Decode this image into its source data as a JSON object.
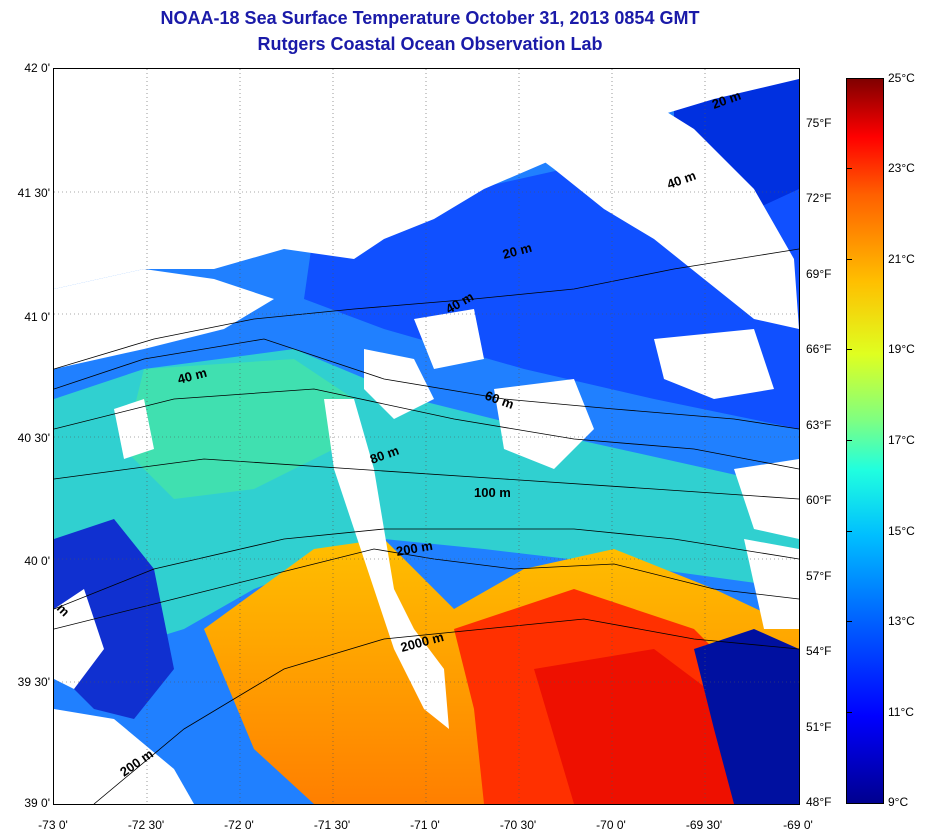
{
  "title": {
    "line1": "NOAA-18 Sea Surface Temperature October 31, 2013 0854 GMT",
    "line2": "Rutgers Coastal Ocean Observation Lab"
  },
  "axes": {
    "lat_labels": [
      "42 0'",
      "41 30'",
      "41 0'",
      "40 30'",
      "40 0'",
      "39 30'",
      "39 0'"
    ],
    "lon_labels": [
      "-73 0'",
      "-72 30'",
      "-72 0'",
      "-71 30'",
      "-71 0'",
      "-70 30'",
      "-70 0'",
      "-69 30'",
      "-69 0'"
    ]
  },
  "colorbar": {
    "celsius_labels": [
      "25°C",
      "23°C",
      "21°C",
      "19°C",
      "17°C",
      "15°C",
      "13°C",
      "11°C",
      "9°C"
    ],
    "fahrenheit_labels": [
      "75°F",
      "72°F",
      "69°F",
      "66°F",
      "63°F",
      "60°F",
      "57°F",
      "54°F",
      "51°F",
      "48°F"
    ],
    "colors": [
      "#00008f",
      "#0000ff",
      "#0060ff",
      "#00bfff",
      "#20ffdf",
      "#80ff80",
      "#dfff20",
      "#ffbf00",
      "#ff6000",
      "#ff0000",
      "#800000"
    ]
  },
  "contour_labels": [
    "20 m",
    "40 m",
    "20 m",
    "40 m",
    "40 m",
    "60 m",
    "80 m",
    "100 m",
    "200 m",
    "2000 m",
    "200 m",
    "m"
  ],
  "colors": {
    "title": "#1a1aa8",
    "land": "#ffffff",
    "cloud": "#ffffff"
  }
}
